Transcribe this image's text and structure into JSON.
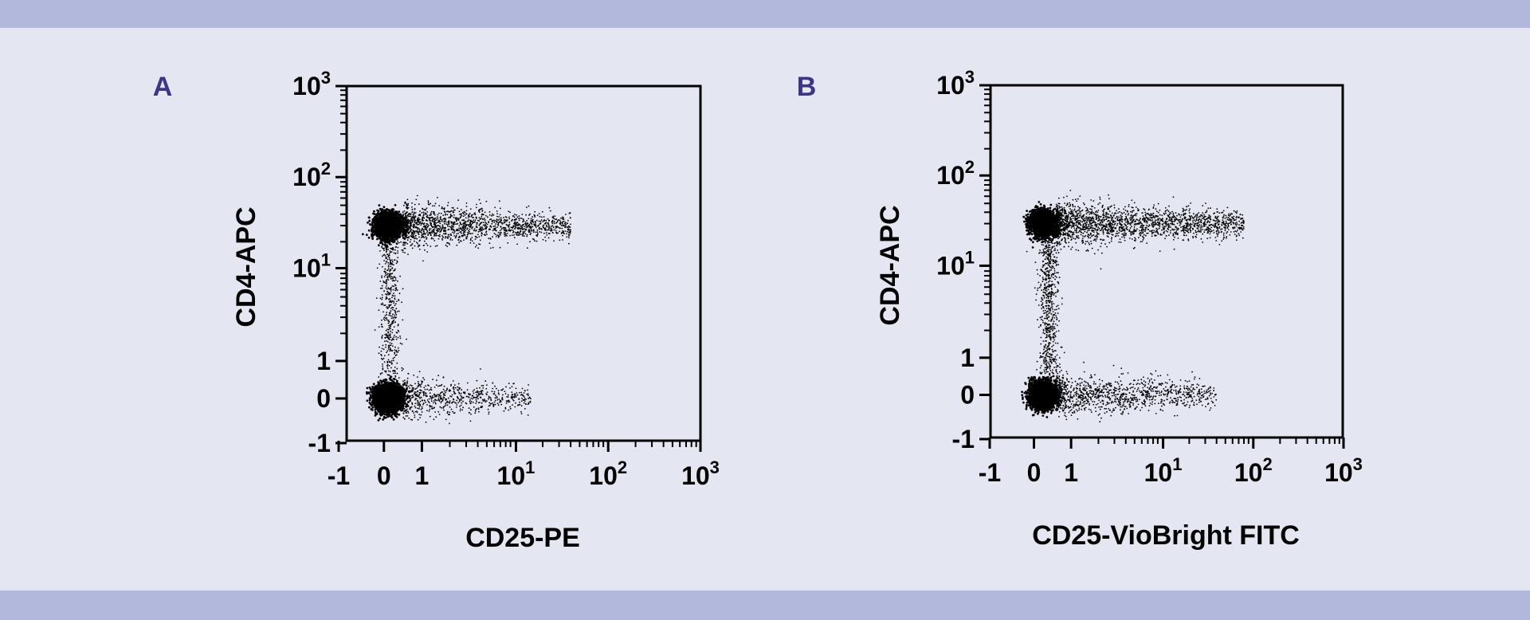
{
  "colors": {
    "background": "#e4e6f1",
    "band": "#b1b8dc",
    "panel_label": "#3d3586",
    "axis": "#000000",
    "dots": "#000000"
  },
  "chart_data": [
    {
      "type": "scatter",
      "panel_label": "A",
      "xlabel": "CD25-PE",
      "ylabel": "CD4-APC",
      "xlim": [
        -1,
        1000
      ],
      "ylim": [
        -1,
        1000
      ],
      "x_scale": "biexponential",
      "y_scale": "biexponential",
      "grid": false,
      "x_ticks": [
        {
          "base": "-1",
          "exp": ""
        },
        {
          "base": "0",
          "exp": ""
        },
        {
          "base": "1",
          "exp": ""
        },
        {
          "base": "10",
          "exp": "1"
        },
        {
          "base": "10",
          "exp": "2"
        },
        {
          "base": "10",
          "exp": "3"
        }
      ],
      "y_ticks": [
        {
          "base": "-1",
          "exp": ""
        },
        {
          "base": "0",
          "exp": ""
        },
        {
          "base": "1",
          "exp": ""
        },
        {
          "base": "10",
          "exp": "1"
        },
        {
          "base": "10",
          "exp": "2"
        },
        {
          "base": "10",
          "exp": "3"
        }
      ],
      "populations": [
        {
          "x_center": 0.1,
          "y_center": 0.0,
          "share": 0.42,
          "shape": "dense cluster"
        },
        {
          "x_center": 0.1,
          "y_center": 30,
          "share": 0.26,
          "shape": "dense cluster"
        },
        {
          "x_range": [
            0.5,
            40
          ],
          "y_center": 30,
          "share": 0.18,
          "shape": "horizontal tail"
        },
        {
          "x_range": [
            0.5,
            15
          ],
          "y_center": 0.0,
          "share": 0.08,
          "shape": "horizontal tail"
        },
        {
          "x_center": 0.15,
          "y_range": [
            0.2,
            25
          ],
          "share": 0.06,
          "shape": "vertical bridge"
        }
      ]
    },
    {
      "type": "scatter",
      "panel_label": "B",
      "xlabel": "CD25-VioBright FITC",
      "ylabel": "CD4-APC",
      "xlim": [
        -1,
        1000
      ],
      "ylim": [
        -1,
        1000
      ],
      "x_scale": "biexponential",
      "y_scale": "biexponential",
      "grid": false,
      "x_ticks": [
        {
          "base": "-1",
          "exp": ""
        },
        {
          "base": "0",
          "exp": ""
        },
        {
          "base": "1",
          "exp": ""
        },
        {
          "base": "10",
          "exp": "1"
        },
        {
          "base": "10",
          "exp": "2"
        },
        {
          "base": "10",
          "exp": "3"
        }
      ],
      "y_ticks": [
        {
          "base": "-1",
          "exp": ""
        },
        {
          "base": "0",
          "exp": ""
        },
        {
          "base": "1",
          "exp": ""
        },
        {
          "base": "10",
          "exp": "1"
        },
        {
          "base": "10",
          "exp": "2"
        },
        {
          "base": "10",
          "exp": "3"
        }
      ],
      "populations": [
        {
          "x_center": 0.25,
          "y_center": 0.0,
          "share": 0.34,
          "shape": "dense cluster"
        },
        {
          "x_center": 0.25,
          "y_center": 30,
          "share": 0.24,
          "shape": "dense cluster"
        },
        {
          "x_range": [
            0.6,
            80
          ],
          "y_center": 30,
          "share": 0.22,
          "shape": "horizontal tail"
        },
        {
          "x_range": [
            0.6,
            40
          ],
          "y_center": 0.0,
          "share": 0.12,
          "shape": "horizontal tail"
        },
        {
          "x_center": 0.4,
          "y_range": [
            0.2,
            25
          ],
          "share": 0.08,
          "shape": "vertical bridge"
        }
      ]
    }
  ]
}
